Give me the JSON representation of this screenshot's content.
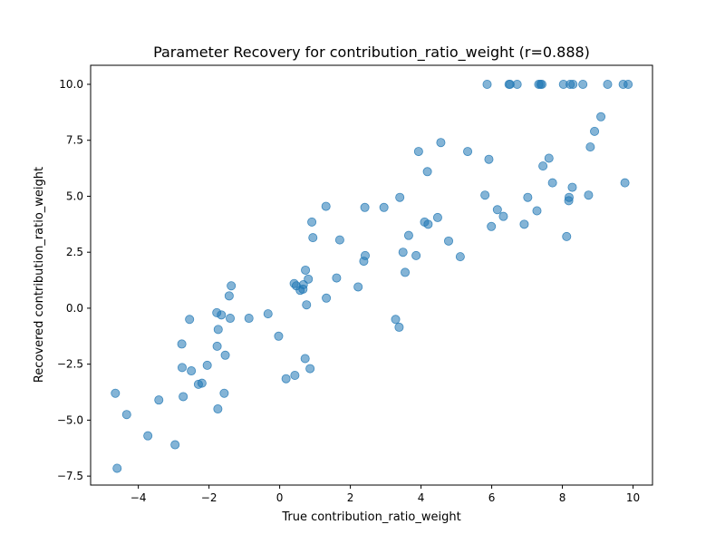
{
  "chart_data": {
    "type": "scatter",
    "title": "Parameter Recovery for contribution_ratio_weight (r=0.888)",
    "xlabel": "True contribution_ratio_weight",
    "ylabel": "Recovered contribution_ratio_weight",
    "xlim": [
      -5.35,
      10.55
    ],
    "ylim": [
      -7.9,
      10.85
    ],
    "xticks": [
      -4,
      -2,
      0,
      2,
      4,
      6,
      8,
      10
    ],
    "xtick_labels": [
      "−4",
      "−2",
      "0",
      "2",
      "4",
      "6",
      "8",
      "10"
    ],
    "yticks": [
      -7.5,
      -5.0,
      -2.5,
      0.0,
      2.5,
      5.0,
      7.5,
      10.0
    ],
    "ytick_labels": [
      "−7.5",
      "−5.0",
      "−2.5",
      "0.0",
      "2.5",
      "5.0",
      "7.5",
      "10.0"
    ],
    "grid": false,
    "legend": "none",
    "marker_color": "#1f77b4",
    "marker_alpha": 0.55,
    "points": [
      [
        -4.65,
        -3.8
      ],
      [
        -4.6,
        -7.15
      ],
      [
        -4.33,
        -4.75
      ],
      [
        -3.73,
        -5.7
      ],
      [
        -3.42,
        -4.1
      ],
      [
        -2.96,
        -6.1
      ],
      [
        -2.77,
        -1.6
      ],
      [
        -2.76,
        -2.65
      ],
      [
        -2.73,
        -3.95
      ],
      [
        -2.55,
        -0.5
      ],
      [
        -2.5,
        -2.8
      ],
      [
        -2.3,
        -3.4
      ],
      [
        -2.2,
        -3.35
      ],
      [
        -2.05,
        -2.55
      ],
      [
        -1.78,
        -0.2
      ],
      [
        -1.77,
        -1.7
      ],
      [
        -1.75,
        -4.5
      ],
      [
        -1.74,
        -0.95
      ],
      [
        -1.65,
        -0.3
      ],
      [
        -1.57,
        -3.8
      ],
      [
        -1.54,
        -2.1
      ],
      [
        -1.43,
        0.55
      ],
      [
        -1.4,
        -0.45
      ],
      [
        -1.37,
        1.0
      ],
      [
        -0.87,
        -0.45
      ],
      [
        -0.33,
        -0.25
      ],
      [
        -0.03,
        -1.25
      ],
      [
        0.18,
        -3.15
      ],
      [
        0.41,
        1.1
      ],
      [
        0.43,
        -3.0
      ],
      [
        0.47,
        1.0
      ],
      [
        0.58,
        0.8
      ],
      [
        0.66,
        0.85
      ],
      [
        0.67,
        1.05
      ],
      [
        0.72,
        -2.25
      ],
      [
        0.73,
        1.7
      ],
      [
        0.76,
        0.15
      ],
      [
        0.81,
        1.3
      ],
      [
        0.86,
        -2.7
      ],
      [
        0.91,
        3.85
      ],
      [
        0.94,
        3.15
      ],
      [
        1.31,
        4.55
      ],
      [
        1.32,
        0.45
      ],
      [
        1.61,
        1.35
      ],
      [
        1.7,
        3.05
      ],
      [
        2.22,
        0.95
      ],
      [
        2.38,
        2.1
      ],
      [
        2.41,
        4.5
      ],
      [
        2.42,
        2.35
      ],
      [
        2.95,
        4.5
      ],
      [
        3.28,
        -0.5
      ],
      [
        3.38,
        -0.85
      ],
      [
        3.4,
        4.95
      ],
      [
        3.49,
        2.5
      ],
      [
        3.55,
        1.6
      ],
      [
        3.65,
        3.25
      ],
      [
        3.86,
        2.35
      ],
      [
        3.93,
        7.0
      ],
      [
        4.1,
        3.85
      ],
      [
        4.18,
        6.1
      ],
      [
        4.2,
        3.75
      ],
      [
        4.47,
        4.05
      ],
      [
        4.56,
        7.4
      ],
      [
        4.78,
        3.0
      ],
      [
        5.11,
        2.3
      ],
      [
        5.32,
        7.0
      ],
      [
        5.81,
        5.05
      ],
      [
        5.87,
        10.0
      ],
      [
        5.92,
        6.65
      ],
      [
        5.99,
        3.65
      ],
      [
        6.16,
        4.4
      ],
      [
        6.33,
        4.1
      ],
      [
        6.49,
        10.0
      ],
      [
        6.52,
        10.0
      ],
      [
        6.72,
        10.0
      ],
      [
        6.92,
        3.75
      ],
      [
        7.02,
        4.95
      ],
      [
        7.28,
        4.35
      ],
      [
        7.33,
        10.0
      ],
      [
        7.38,
        10.0
      ],
      [
        7.42,
        10.0
      ],
      [
        7.45,
        6.35
      ],
      [
        7.62,
        6.7
      ],
      [
        7.72,
        5.6
      ],
      [
        8.03,
        10.0
      ],
      [
        8.12,
        3.2
      ],
      [
        8.18,
        4.8
      ],
      [
        8.19,
        4.95
      ],
      [
        8.22,
        10.0
      ],
      [
        8.28,
        5.4
      ],
      [
        8.3,
        10.0
      ],
      [
        8.58,
        10.0
      ],
      [
        8.74,
        5.05
      ],
      [
        8.79,
        7.2
      ],
      [
        8.91,
        7.9
      ],
      [
        9.09,
        8.55
      ],
      [
        9.28,
        10.0
      ],
      [
        9.72,
        10.0
      ],
      [
        9.77,
        5.6
      ],
      [
        9.86,
        10.0
      ]
    ]
  }
}
